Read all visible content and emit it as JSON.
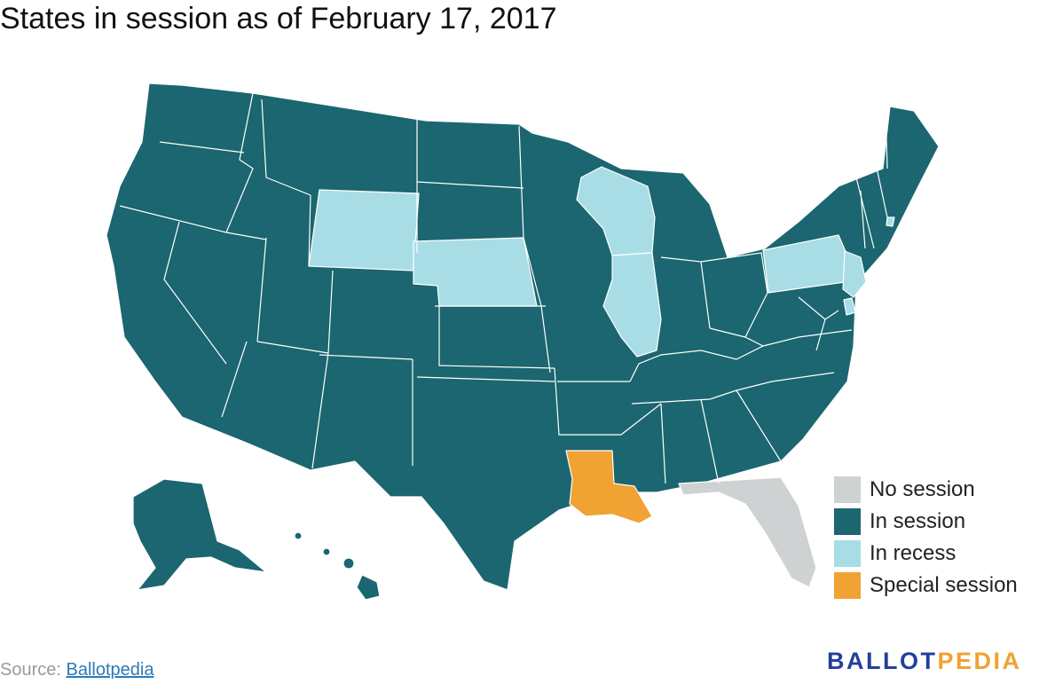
{
  "title": "States in session as of February 17, 2017",
  "legend": [
    {
      "key": "none",
      "label": "No session",
      "color": "#cfd2d3"
    },
    {
      "key": "in",
      "label": "In session",
      "color": "#1b6670"
    },
    {
      "key": "recess",
      "label": "In recess",
      "color": "#a8dde6"
    },
    {
      "key": "special",
      "label": "Special session",
      "color": "#f0a232"
    }
  ],
  "states_by_status": {
    "none": [
      "Florida"
    ],
    "recess": [
      "Wyoming",
      "Nebraska",
      "Wisconsin",
      "Illinois",
      "Pennsylvania",
      "New Jersey",
      "Delaware",
      "Rhode Island"
    ],
    "special": [
      "Louisiana"
    ],
    "in": [
      "all other states"
    ]
  },
  "source": {
    "prefix": "Source: ",
    "link": "Ballotpedia"
  },
  "logo": {
    "part1": "BALLOT",
    "part2": "PEDIA",
    "color1": "#22409a",
    "color2": "#f0a232"
  }
}
